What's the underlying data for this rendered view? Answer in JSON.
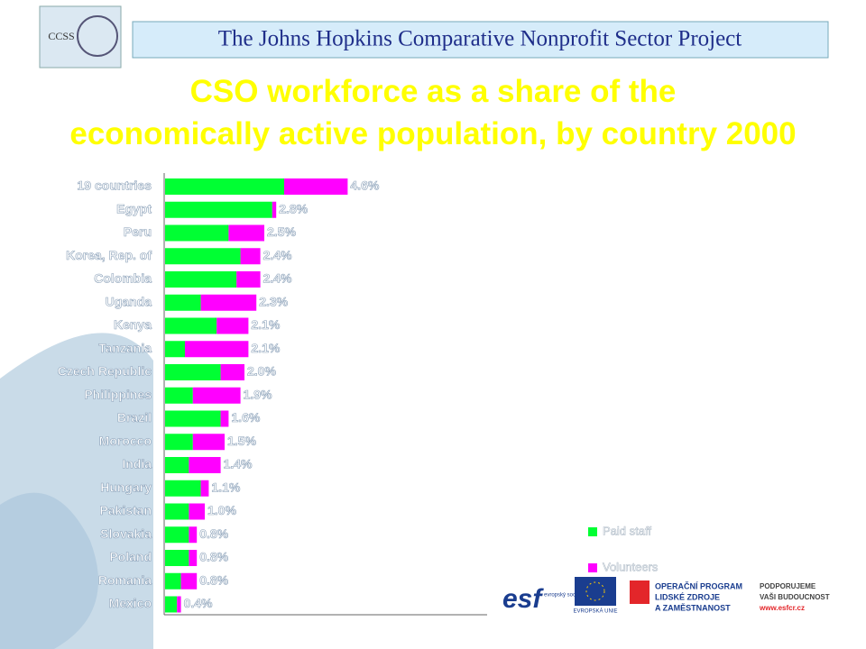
{
  "header": {
    "logo": "CCSS",
    "title": "The Johns Hopkins Comparative Nonprofit Sector Project"
  },
  "chart_data": {
    "type": "stacked_bar_horizontal",
    "title": "CSO workforce as a share of the economically active population, by country 2000",
    "categories": [
      "19 countries",
      "Egypt",
      "Peru",
      "Korea, Rep. of",
      "Colombia",
      "Uganda",
      "Kenya",
      "Tanzania",
      "Czech Republic",
      "Philippines",
      "Brazil",
      "Morocco",
      "India",
      "Hungary",
      "Pakistan",
      "Slovakia",
      "Poland",
      "Romania",
      "Mexico"
    ],
    "series": [
      {
        "name": "Paid staff",
        "color": "#00ff33",
        "values": [
          3.0,
          2.7,
          1.6,
          1.9,
          1.8,
          0.9,
          1.3,
          0.5,
          1.4,
          0.7,
          1.4,
          0.7,
          0.6,
          0.9,
          0.6,
          0.6,
          0.6,
          0.4,
          0.3
        ]
      },
      {
        "name": "Volunteers",
        "color": "#ff00ff",
        "values": [
          1.6,
          0.1,
          0.9,
          0.5,
          0.6,
          1.4,
          0.8,
          1.6,
          0.6,
          1.2,
          0.2,
          0.8,
          0.8,
          0.2,
          0.4,
          0.2,
          0.2,
          0.4,
          0.1
        ]
      }
    ],
    "totals": [
      4.6,
      2.8,
      2.5,
      2.4,
      2.4,
      2.3,
      2.1,
      2.1,
      2.0,
      1.9,
      1.6,
      1.5,
      1.4,
      1.1,
      1.0,
      0.8,
      0.8,
      0.8,
      0.4
    ],
    "total_labels": [
      "4.6%",
      "2.8%",
      "2.5%",
      "2.4%",
      "2.4%",
      "2.3%",
      "2.1%",
      "2.1%",
      "2.0%",
      "1.9%",
      "1.6%",
      "1.5%",
      "1.4%",
      "1.1%",
      "1.0%",
      "0.8%",
      "0.8%",
      "0.8%",
      "0.4%"
    ],
    "xlim": [
      0,
      5
    ]
  },
  "footer": {
    "esf": "esf",
    "esf_caption": "evropský sociální fond v ČR",
    "eu": "EVROPSKÁ UNIE",
    "program": [
      "OPERAČNÍ PROGRAM",
      "LIDSKÉ ZDROJE",
      "A ZAMĚSTNANOST"
    ],
    "slogan": [
      "PODPORUJEME",
      "VAŠI BUDOUCNOST"
    ],
    "url": "www.esfcr.cz"
  }
}
